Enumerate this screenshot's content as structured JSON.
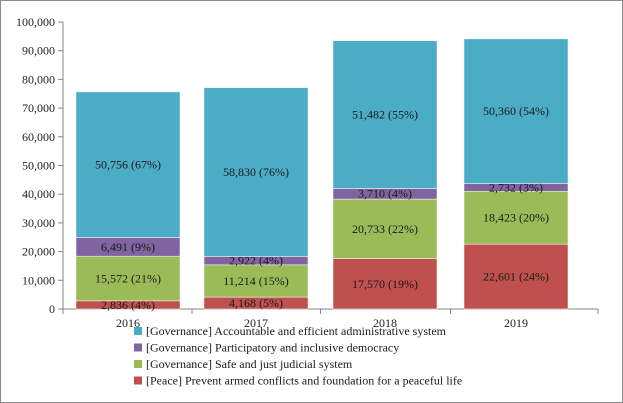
{
  "chart_data": {
    "type": "stacked-bar",
    "categories": [
      "2016",
      "2017",
      "2018",
      "2019"
    ],
    "series": [
      {
        "name": "[Peace] Prevent armed conflicts and foundation for a peaceful life",
        "color": "#c0504d",
        "values": [
          2836,
          4168,
          17570,
          22601
        ],
        "labels": [
          "2,836 (4%)",
          "4,168 (5%)",
          "17,570 (19%)",
          "22,601 (24%)"
        ]
      },
      {
        "name": "[Governance] Safe and just judicial system",
        "color": "#9bbb59",
        "values": [
          15572,
          11214,
          20733,
          18423
        ],
        "labels": [
          "15,572 (21%)",
          "11,214 (15%)",
          "20,733 (22%)",
          "18,423 (20%)"
        ]
      },
      {
        "name": "[Governance] Participatory and inclusive democracy",
        "color": "#8064a2",
        "values": [
          6491,
          2922,
          3710,
          2732
        ],
        "labels": [
          "6,491 (9%)",
          "2,922 (4%)",
          "3,710 (4%)",
          "2,732 (3%)"
        ]
      },
      {
        "name": "[Governance] Accountable and efficient administrative system",
        "color": "#4bacc6",
        "values": [
          50756,
          58830,
          51482,
          50360
        ],
        "labels": [
          "50,756 (67%)",
          "58,830 (76%)",
          "51,482 (55%)",
          "50,360 (54%)"
        ]
      }
    ],
    "ylim": [
      0,
      100000
    ],
    "yticks": [
      0,
      10000,
      20000,
      30000,
      40000,
      50000,
      60000,
      70000,
      80000,
      90000,
      100000
    ],
    "ytick_labels": [
      "0",
      "10,000",
      "20,000",
      "30,000",
      "40,000",
      "50,000",
      "60,000",
      "70,000",
      "80,000",
      "90,000",
      "100,000"
    ],
    "legend_position": "bottom",
    "legend_order": [
      3,
      2,
      1,
      0
    ],
    "grid": false
  }
}
